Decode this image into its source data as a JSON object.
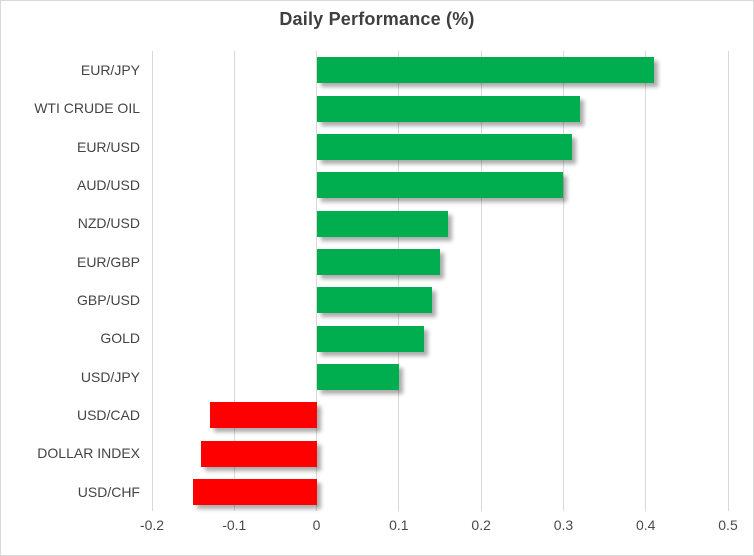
{
  "title": "Daily Performance (%)",
  "colors": {
    "positive_bar": "#00AE4F",
    "negative_bar": "#FF0000",
    "gridline": "#D9D9D9",
    "title_text": "#3F3F3F",
    "label_text": "#444444",
    "frame_border": "#D9D9D9"
  },
  "chart_data": {
    "type": "bar",
    "orientation": "horizontal",
    "title": "Daily Performance (%)",
    "categories": [
      "EUR/JPY",
      "WTI CRUDE OIL",
      "EUR/USD",
      "AUD/USD",
      "NZD/USD",
      "EUR/GBP",
      "GBP/USD",
      "GOLD",
      "USD/JPY",
      "USD/CAD",
      "DOLLAR INDEX",
      "USD/CHF"
    ],
    "values": [
      0.41,
      0.32,
      0.31,
      0.3,
      0.16,
      0.15,
      0.14,
      0.13,
      0.1,
      -0.13,
      -0.14,
      -0.15
    ],
    "xlabel": "",
    "ylabel": "",
    "xlim": [
      -0.2,
      0.5
    ],
    "xticks": [
      -0.2,
      -0.1,
      0,
      0.1,
      0.2,
      0.3,
      0.4,
      0.5
    ],
    "xtick_labels": [
      "-0.2",
      "-0.1",
      "0",
      "0.1",
      "0.2",
      "0.3",
      "0.4",
      "0.5"
    ],
    "grid": true,
    "legend": false,
    "bar_color_positive": "#00AE4F",
    "bar_color_negative": "#FF0000"
  }
}
